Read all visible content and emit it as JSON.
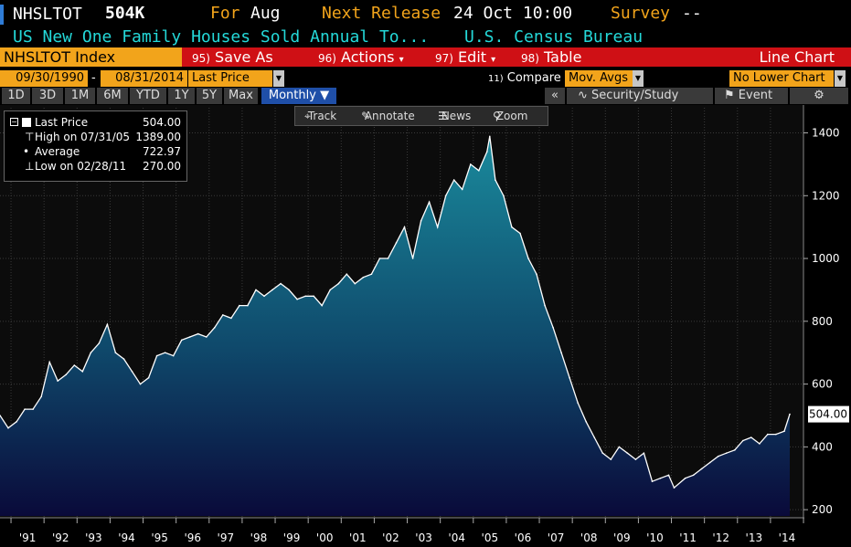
{
  "header": {
    "ticker": "NHSLTOT",
    "value": "504K",
    "for_label": "For",
    "for_month": "Aug",
    "next_release_label": "Next Release",
    "next_release_date": "24 Oct 10:00",
    "survey_label": "Survey",
    "survey_value": "--",
    "description": "US New One Family Houses Sold Annual To...",
    "source": "U.S. Census Bureau"
  },
  "menu": {
    "index_name": "NHSLTOT Index",
    "save_as_num": "95)",
    "save_as": "Save As",
    "actions_num": "96)",
    "actions": "Actions",
    "edit_num": "97)",
    "edit": "Edit",
    "table_num": "98)",
    "table": "Table",
    "chart_type": "Line Chart"
  },
  "fields": {
    "start_date": "09/30/1990",
    "end_date": "08/31/2014",
    "price_field": "Last Price",
    "compare_num": "11)",
    "compare_label": "Compare",
    "compare_value": "Mov. Avgs",
    "lower_chart": "No Lower Chart"
  },
  "periods": [
    "1D",
    "3D",
    "1M",
    "6M",
    "YTD",
    "1Y",
    "5Y",
    "Max"
  ],
  "frequency": "Monthly",
  "toolbar": {
    "security_study": "Security/Study",
    "event": "Event",
    "track": "Track",
    "annotate": "Annotate",
    "news": "News",
    "zoom": "Zoom"
  },
  "legend": [
    {
      "label": "Last Price",
      "value": "504.00"
    },
    {
      "label": "High on 07/31/05",
      "value": "1389.00"
    },
    {
      "label": "Average",
      "value": "722.97"
    },
    {
      "label": "Low on 02/28/11",
      "value": "270.00"
    }
  ],
  "colors": {
    "accent_orange": "#f2a41b",
    "menu_red": "#cf1015",
    "cyan_text": "#24d9d9",
    "area_top": "#1a8a9c",
    "area_bottom": "#0a0a3a"
  },
  "chart_data": {
    "type": "area",
    "title": "",
    "xlabel": "",
    "ylabel": "",
    "ylim": [
      180,
      1480
    ],
    "xlim": [
      "1990-09",
      "2014-10"
    ],
    "yticks": [
      200,
      400,
      600,
      800,
      1000,
      1200,
      1400
    ],
    "xtick_labels": [
      "'91",
      "'92",
      "'93",
      "'94",
      "'95",
      "'96",
      "'97",
      "'98",
      "'99",
      "'00",
      "'01",
      "'02",
      "'03",
      "'04",
      "'05",
      "'06",
      "'07",
      "'08",
      "'09",
      "'10",
      "'11",
      "'12",
      "'13",
      "'14"
    ],
    "last_value_label": "504.00",
    "grid": true,
    "series": [
      {
        "name": "Last Price",
        "x": [
          "1990-09",
          "1990-12",
          "1991-03",
          "1991-06",
          "1991-09",
          "1991-12",
          "1992-03",
          "1992-06",
          "1992-09",
          "1992-12",
          "1993-03",
          "1993-06",
          "1993-09",
          "1993-12",
          "1994-03",
          "1994-06",
          "1994-09",
          "1994-12",
          "1995-03",
          "1995-06",
          "1995-09",
          "1995-12",
          "1996-03",
          "1996-06",
          "1996-09",
          "1996-12",
          "1997-03",
          "1997-06",
          "1997-09",
          "1997-12",
          "1998-03",
          "1998-06",
          "1998-09",
          "1998-12",
          "1999-03",
          "1999-06",
          "1999-09",
          "1999-12",
          "2000-03",
          "2000-06",
          "2000-09",
          "2000-12",
          "2001-03",
          "2001-06",
          "2001-09",
          "2001-12",
          "2002-03",
          "2002-06",
          "2002-09",
          "2002-12",
          "2003-03",
          "2003-06",
          "2003-09",
          "2003-12",
          "2004-03",
          "2004-06",
          "2004-09",
          "2004-12",
          "2005-03",
          "2005-06",
          "2005-07",
          "2005-09",
          "2005-12",
          "2006-03",
          "2006-06",
          "2006-09",
          "2006-12",
          "2007-03",
          "2007-06",
          "2007-09",
          "2007-12",
          "2008-03",
          "2008-06",
          "2008-09",
          "2008-12",
          "2009-03",
          "2009-06",
          "2009-09",
          "2009-12",
          "2010-03",
          "2010-06",
          "2010-09",
          "2010-12",
          "2011-02",
          "2011-06",
          "2011-09",
          "2011-12",
          "2012-03",
          "2012-06",
          "2012-09",
          "2012-12",
          "2013-03",
          "2013-06",
          "2013-09",
          "2013-12",
          "2014-03",
          "2014-06",
          "2014-08"
        ],
        "values": [
          500,
          460,
          480,
          520,
          520,
          560,
          670,
          610,
          630,
          660,
          640,
          700,
          730,
          790,
          700,
          680,
          640,
          600,
          620,
          690,
          700,
          690,
          740,
          750,
          760,
          750,
          780,
          820,
          810,
          850,
          850,
          900,
          880,
          900,
          920,
          900,
          870,
          880,
          880,
          850,
          900,
          920,
          950,
          920,
          940,
          950,
          1000,
          1000,
          1050,
          1100,
          1000,
          1120,
          1180,
          1100,
          1200,
          1250,
          1220,
          1300,
          1280,
          1340,
          1389,
          1250,
          1200,
          1100,
          1080,
          1000,
          950,
          850,
          780,
          700,
          620,
          540,
          480,
          430,
          380,
          360,
          400,
          380,
          360,
          380,
          290,
          300,
          310,
          270,
          300,
          310,
          330,
          350,
          370,
          380,
          390,
          420,
          430,
          410,
          440,
          440,
          450,
          504
        ]
      }
    ]
  }
}
